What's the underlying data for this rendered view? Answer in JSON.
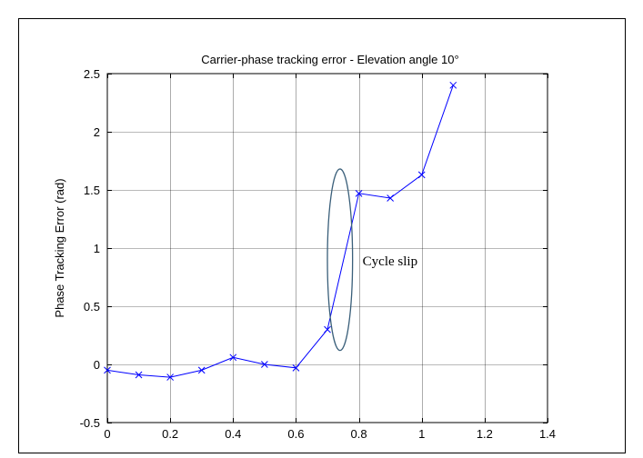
{
  "chart_data": {
    "type": "line",
    "title": "Carrier-phase tracking error - Elevation angle 10°",
    "xlabel": "",
    "ylabel": "Phase Tracking Error (rad)",
    "xlim": [
      0,
      1.4
    ],
    "ylim": [
      -0.5,
      2.5
    ],
    "x_ticks": [
      0,
      0.2,
      0.4,
      0.6,
      0.8,
      1,
      1.2,
      1.4
    ],
    "y_ticks": [
      -0.5,
      0,
      0.5,
      1,
      1.5,
      2,
      2.5
    ],
    "x_tick_labels": [
      "0",
      "0.2",
      "0.4",
      "0.6",
      "0.8",
      "1",
      "1.2",
      "1.4"
    ],
    "y_tick_labels": [
      "-0.5",
      "0",
      "0.5",
      "1",
      "1.5",
      "2",
      "2.5"
    ],
    "grid": true,
    "series": [
      {
        "color": "#0000ff",
        "marker": "x",
        "x": [
          0,
          0.1,
          0.2,
          0.3,
          0.4,
          0.5,
          0.6,
          0.7,
          0.8,
          0.9,
          1.0,
          1.1
        ],
        "y": [
          -0.05,
          -0.09,
          -0.11,
          -0.05,
          0.06,
          0.0,
          -0.03,
          0.3,
          1.47,
          1.43,
          1.63,
          2.4
        ]
      }
    ],
    "annotations": [
      {
        "text": "Cycle slip",
        "shape": "ellipse",
        "color": "#3a5f7a",
        "center": [
          0.74,
          0.9
        ],
        "rx": 0.04,
        "ry": 0.78
      }
    ]
  }
}
